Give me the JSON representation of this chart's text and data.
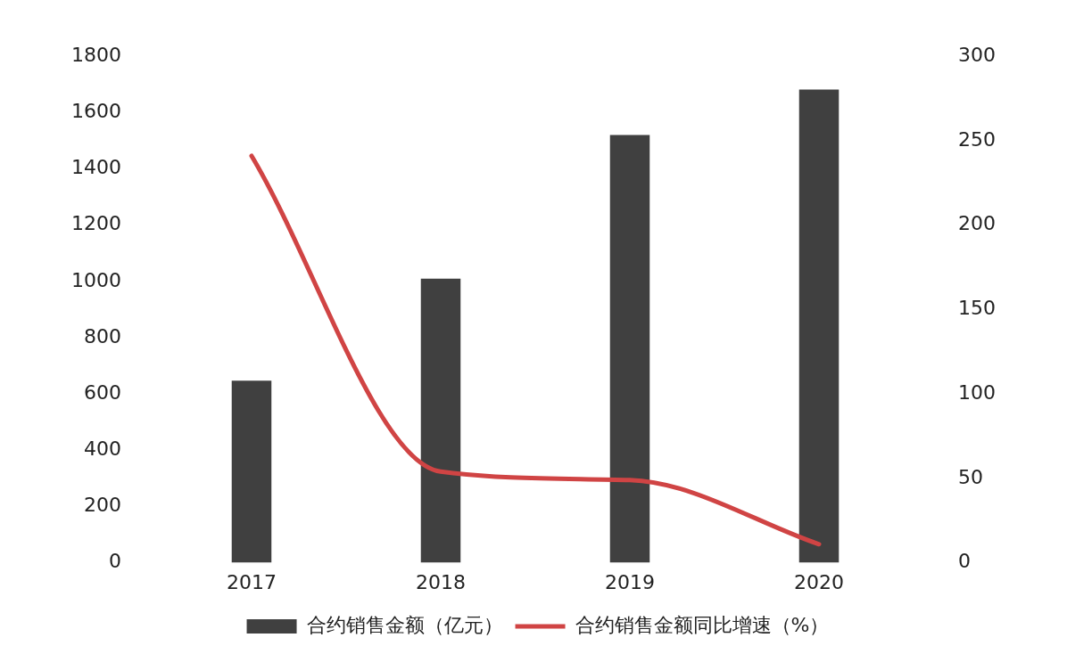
{
  "chart_data": {
    "type": "bar",
    "categories": [
      "2017",
      "2018",
      "2019",
      "2020"
    ],
    "series": [
      {
        "name": "合约销售金额（亿元）",
        "color": "#404040",
        "values": [
          647,
          1010,
          1520,
          1682
        ]
      },
      {
        "name": "合约销售金额同比增速（%）",
        "type": "line",
        "axis": "y2",
        "color": "#d04444",
        "values": [
          241,
          54,
          49,
          11
        ]
      }
    ],
    "ylim": [
      0,
      1800
    ],
    "yticks": [
      0,
      200,
      400,
      600,
      800,
      1000,
      1200,
      1400,
      1600,
      1800
    ],
    "y2lim": [
      0,
      300
    ],
    "y2ticks": [
      0,
      50,
      100,
      150,
      200,
      250,
      300
    ],
    "grid": false,
    "legend": "bottom",
    "marker": "none",
    "line_style": "solid"
  }
}
